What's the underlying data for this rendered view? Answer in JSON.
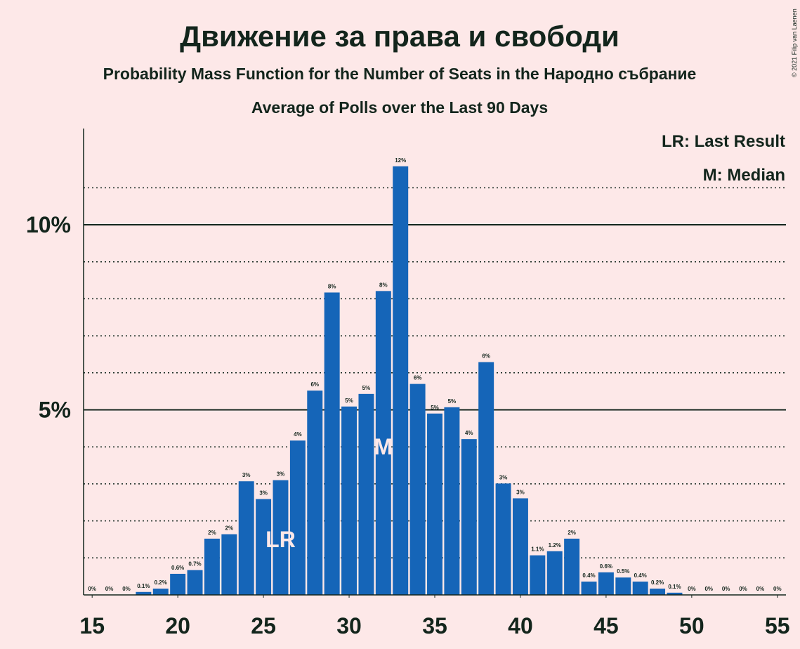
{
  "chart_data": {
    "type": "bar",
    "title": "Движение за права и свободи",
    "subtitle": "Probability Mass Function for the Number of Seats in the Народно събрание",
    "subtitle2": "Average of Polls over the Last 90 Days",
    "legend": [
      "LR: Last Result",
      "M: Median"
    ],
    "legend_position": "upper right",
    "copyright": "© 2021 Filip van Laenen",
    "annotations": [
      {
        "text": "LR",
        "x": 26
      },
      {
        "text": "M",
        "x": 32
      }
    ],
    "x": [
      15,
      16,
      17,
      18,
      19,
      20,
      21,
      22,
      23,
      24,
      25,
      26,
      27,
      28,
      29,
      30,
      31,
      32,
      33,
      34,
      35,
      36,
      37,
      38,
      39,
      40,
      41,
      42,
      43,
      44,
      45,
      46,
      47,
      48,
      49,
      50,
      51,
      52,
      53,
      54,
      55
    ],
    "values": [
      0,
      0,
      0,
      0.08,
      0.17,
      0.57,
      0.67,
      1.52,
      1.64,
      3.07,
      2.59,
      3.1,
      4.17,
      5.52,
      8.17,
      5.09,
      5.43,
      8.21,
      11.58,
      5.7,
      4.9,
      5.07,
      4.21,
      6.29,
      3.01,
      2.61,
      1.07,
      1.18,
      1.52,
      0.36,
      0.61,
      0.47,
      0.36,
      0.17,
      0.06,
      0,
      0,
      0,
      0,
      0,
      0
    ],
    "value_labels": [
      "0%",
      "0%",
      "0%",
      "0.1%",
      "0.2%",
      "0.6%",
      "0.7%",
      "2%",
      "2%",
      "3%",
      "3%",
      "3%",
      "4%",
      "6%",
      "8%",
      "5%",
      "5%",
      "8%",
      "12%",
      "6%",
      "5%",
      "5%",
      "4%",
      "6%",
      "3%",
      "3%",
      "1.1%",
      "1.2%",
      "2%",
      "0.4%",
      "0.6%",
      "0.5%",
      "0.4%",
      "0.2%",
      "0.1%",
      "0%",
      "0%",
      "0%",
      "0%",
      "0%",
      "0%"
    ],
    "color": "#1565b8",
    "xlim": [
      14.5,
      55.5
    ],
    "xticks": [
      15,
      20,
      25,
      30,
      35,
      40,
      45,
      50,
      55
    ],
    "ylim": [
      0,
      12.6
    ],
    "yticks": [
      {
        "value": 5,
        "label": "5%"
      },
      {
        "value": 10,
        "label": "10%"
      }
    ],
    "minor_yticks": [
      1,
      2,
      3,
      4,
      6,
      7,
      8,
      9,
      11
    ],
    "grid": true
  }
}
